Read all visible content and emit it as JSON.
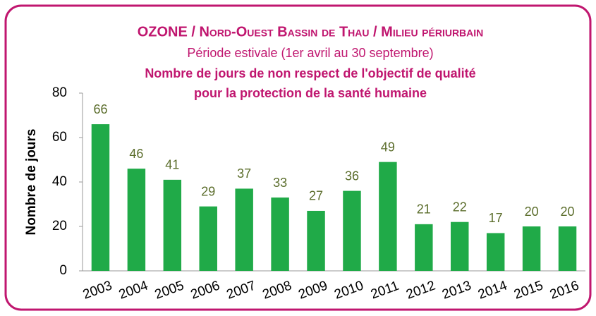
{
  "chart_data": {
    "type": "bar",
    "title": "OZONE / Nord-Ouest Bassin de Thau / Milieu périurbain",
    "subtitle": "Période estivale (1er avril au 30 septembre)",
    "chart_title": [
      "Nombre de jours de non respect de l'objectif de qualité",
      "pour la protection de la santé humaine"
    ],
    "y_label": "Nombre de jours",
    "categories": [
      "2003",
      "2004",
      "2005",
      "2006",
      "2007",
      "2008",
      "2009",
      "2010",
      "2011",
      "2012",
      "2013",
      "2014",
      "2015",
      "2016"
    ],
    "values": [
      66,
      46,
      41,
      29,
      37,
      33,
      27,
      36,
      49,
      21,
      22,
      17,
      20,
      20
    ],
    "color": "#20aa48",
    "ylim": [
      0,
      80
    ],
    "yticks": [
      0,
      20,
      40,
      60,
      80
    ],
    "grid": false
  }
}
